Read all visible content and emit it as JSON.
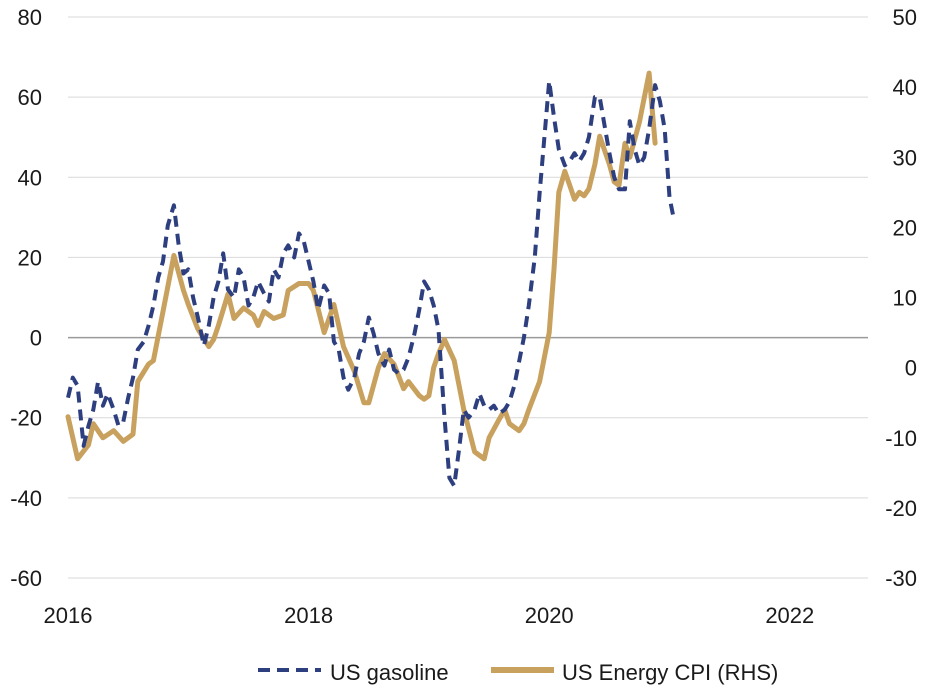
{
  "chart_data": {
    "type": "line",
    "title": "",
    "xlabel": "",
    "x_ticks": [
      "2016",
      "2018",
      "2020",
      "2022"
    ],
    "x_range": [
      2016.0,
      2022.65
    ],
    "y_left": {
      "ticks": [
        "80",
        "60",
        "40",
        "20",
        "0",
        "-20",
        "-40",
        "-60"
      ],
      "range": [
        -60,
        80
      ]
    },
    "y_right": {
      "ticks": [
        "50",
        "40",
        "30",
        "20",
        "10",
        "0",
        "-10",
        "-20",
        "-30"
      ],
      "range": [
        -30,
        50
      ]
    },
    "grid": "horizontal",
    "zero_line": true,
    "legend_position": "bottom",
    "series": [
      {
        "name": "US gasoline",
        "axis": "left",
        "color": "#2E3F7F",
        "style": "dashed",
        "points": [
          [
            2016.0,
            -15
          ],
          [
            2016.04,
            -10
          ],
          [
            2016.08,
            -12
          ],
          [
            2016.13,
            -27
          ],
          [
            2016.17,
            -22
          ],
          [
            2016.21,
            -18
          ],
          [
            2016.25,
            -11
          ],
          [
            2016.29,
            -17
          ],
          [
            2016.33,
            -14
          ],
          [
            2016.38,
            -18
          ],
          [
            2016.42,
            -22
          ],
          [
            2016.46,
            -21
          ],
          [
            2016.5,
            -15
          ],
          [
            2016.54,
            -10
          ],
          [
            2016.58,
            -3
          ],
          [
            2016.63,
            -1
          ],
          [
            2016.67,
            3
          ],
          [
            2016.71,
            8
          ],
          [
            2016.75,
            15
          ],
          [
            2016.79,
            19
          ],
          [
            2016.83,
            28
          ],
          [
            2016.88,
            33
          ],
          [
            2016.92,
            23
          ],
          [
            2016.96,
            16
          ],
          [
            2017.0,
            17
          ],
          [
            2017.04,
            10
          ],
          [
            2017.08,
            5
          ],
          [
            2017.13,
            -2
          ],
          [
            2017.17,
            3
          ],
          [
            2017.21,
            10
          ],
          [
            2017.25,
            14
          ],
          [
            2017.29,
            21
          ],
          [
            2017.33,
            12
          ],
          [
            2017.38,
            10
          ],
          [
            2017.42,
            17
          ],
          [
            2017.46,
            15
          ],
          [
            2017.5,
            8
          ],
          [
            2017.54,
            10
          ],
          [
            2017.58,
            14
          ],
          [
            2017.63,
            11
          ],
          [
            2017.67,
            9
          ],
          [
            2017.71,
            17
          ],
          [
            2017.75,
            15
          ],
          [
            2017.79,
            21
          ],
          [
            2017.83,
            23
          ],
          [
            2017.88,
            20
          ],
          [
            2017.92,
            26
          ],
          [
            2017.96,
            24
          ],
          [
            2018.0,
            19
          ],
          [
            2018.04,
            14
          ],
          [
            2018.08,
            7
          ],
          [
            2018.13,
            13
          ],
          [
            2018.17,
            11
          ],
          [
            2018.21,
            -1
          ],
          [
            2018.25,
            -3
          ],
          [
            2018.29,
            -10
          ],
          [
            2018.33,
            -13
          ],
          [
            2018.38,
            -10
          ],
          [
            2018.42,
            -4
          ],
          [
            2018.46,
            -1
          ],
          [
            2018.5,
            5
          ],
          [
            2018.54,
            1
          ],
          [
            2018.58,
            -4
          ],
          [
            2018.63,
            -7
          ],
          [
            2018.67,
            -3
          ],
          [
            2018.71,
            -8
          ],
          [
            2018.75,
            -9
          ],
          [
            2018.79,
            -8
          ],
          [
            2018.83,
            -5
          ],
          [
            2018.88,
            1
          ],
          [
            2018.92,
            7
          ],
          [
            2018.96,
            14
          ],
          [
            2019.0,
            12
          ],
          [
            2019.04,
            8
          ],
          [
            2019.08,
            2
          ],
          [
            2019.13,
            -20
          ],
          [
            2019.17,
            -35
          ],
          [
            2019.21,
            -37
          ],
          [
            2019.25,
            -28
          ],
          [
            2019.29,
            -18
          ],
          [
            2019.33,
            -20
          ],
          [
            2019.38,
            -18
          ],
          [
            2019.42,
            -14
          ],
          [
            2019.46,
            -17
          ],
          [
            2019.5,
            -18
          ],
          [
            2019.54,
            -17
          ],
          [
            2019.58,
            -19
          ],
          [
            2019.63,
            -18
          ],
          [
            2019.67,
            -16
          ],
          [
            2019.71,
            -12
          ],
          [
            2019.75,
            -6
          ],
          [
            2019.79,
            0
          ],
          [
            2019.83,
            8
          ],
          [
            2019.88,
            20
          ],
          [
            2019.92,
            36
          ],
          [
            2019.96,
            50
          ],
          [
            2020.0,
            64
          ],
          [
            2020.04,
            55
          ],
          [
            2020.08,
            47
          ],
          [
            2020.13,
            43
          ],
          [
            2020.17,
            44
          ],
          [
            2020.21,
            46
          ],
          [
            2020.25,
            44
          ],
          [
            2020.29,
            46
          ],
          [
            2020.33,
            50
          ],
          [
            2020.38,
            60
          ],
          [
            2020.42,
            60
          ],
          [
            2020.46,
            53
          ],
          [
            2020.5,
            46
          ],
          [
            2020.54,
            40
          ],
          [
            2020.58,
            37
          ],
          [
            2020.63,
            37
          ],
          [
            2020.67,
            54
          ],
          [
            2020.71,
            47
          ],
          [
            2020.75,
            43
          ],
          [
            2020.79,
            45
          ],
          [
            2020.83,
            52
          ],
          [
            2020.88,
            63
          ],
          [
            2020.92,
            59
          ],
          [
            2020.96,
            52
          ],
          [
            2021.0,
            35
          ],
          [
            2021.04,
            29
          ]
        ]
      },
      {
        "name": "US Energy CPI (RHS)",
        "axis": "right",
        "color": "#C9A15E",
        "style": "solid",
        "points": [
          [
            2016.0,
            -7
          ],
          [
            2016.08,
            -13
          ],
          [
            2016.17,
            -11
          ],
          [
            2016.21,
            -8
          ],
          [
            2016.29,
            -10
          ],
          [
            2016.38,
            -9
          ],
          [
            2016.46,
            -10.5
          ],
          [
            2016.54,
            -9.5
          ],
          [
            2016.58,
            -2
          ],
          [
            2016.67,
            0.5
          ],
          [
            2016.71,
            1
          ],
          [
            2016.79,
            8
          ],
          [
            2016.88,
            16
          ],
          [
            2016.96,
            11
          ],
          [
            2017.0,
            9
          ],
          [
            2017.08,
            5.5
          ],
          [
            2017.17,
            3
          ],
          [
            2017.21,
            4
          ],
          [
            2017.25,
            6
          ],
          [
            2017.33,
            10.5
          ],
          [
            2017.38,
            7
          ],
          [
            2017.46,
            8.5
          ],
          [
            2017.54,
            7.5
          ],
          [
            2017.58,
            6
          ],
          [
            2017.63,
            8
          ],
          [
            2017.71,
            7
          ],
          [
            2017.79,
            7.5
          ],
          [
            2017.83,
            11
          ],
          [
            2017.92,
            12
          ],
          [
            2018.0,
            12
          ],
          [
            2018.04,
            11
          ],
          [
            2018.13,
            5
          ],
          [
            2018.21,
            9
          ],
          [
            2018.29,
            3
          ],
          [
            2018.38,
            -0.5
          ],
          [
            2018.46,
            -5
          ],
          [
            2018.5,
            -5
          ],
          [
            2018.58,
            0
          ],
          [
            2018.63,
            2
          ],
          [
            2018.71,
            0.5
          ],
          [
            2018.79,
            -3
          ],
          [
            2018.83,
            -2
          ],
          [
            2018.92,
            -4
          ],
          [
            2018.96,
            -4.5
          ],
          [
            2019.0,
            -4
          ],
          [
            2019.04,
            0
          ],
          [
            2019.08,
            2
          ],
          [
            2019.13,
            4
          ],
          [
            2019.21,
            1
          ],
          [
            2019.29,
            -6
          ],
          [
            2019.38,
            -12
          ],
          [
            2019.46,
            -13
          ],
          [
            2019.5,
            -10
          ],
          [
            2019.58,
            -7.5
          ],
          [
            2019.63,
            -6
          ],
          [
            2019.67,
            -8
          ],
          [
            2019.75,
            -9
          ],
          [
            2019.79,
            -8
          ],
          [
            2019.83,
            -6
          ],
          [
            2019.92,
            -2
          ],
          [
            2020.0,
            5
          ],
          [
            2020.04,
            14
          ],
          [
            2020.08,
            25
          ],
          [
            2020.13,
            28
          ],
          [
            2020.17,
            26
          ],
          [
            2020.21,
            24
          ],
          [
            2020.25,
            25
          ],
          [
            2020.29,
            24.5
          ],
          [
            2020.33,
            25.5
          ],
          [
            2020.38,
            29
          ],
          [
            2020.42,
            33
          ],
          [
            2020.5,
            29
          ],
          [
            2020.54,
            26.5
          ],
          [
            2020.58,
            26
          ],
          [
            2020.63,
            32
          ],
          [
            2020.67,
            30
          ],
          [
            2020.75,
            35
          ],
          [
            2020.83,
            42
          ],
          [
            2020.88,
            32
          ]
        ]
      }
    ]
  }
}
